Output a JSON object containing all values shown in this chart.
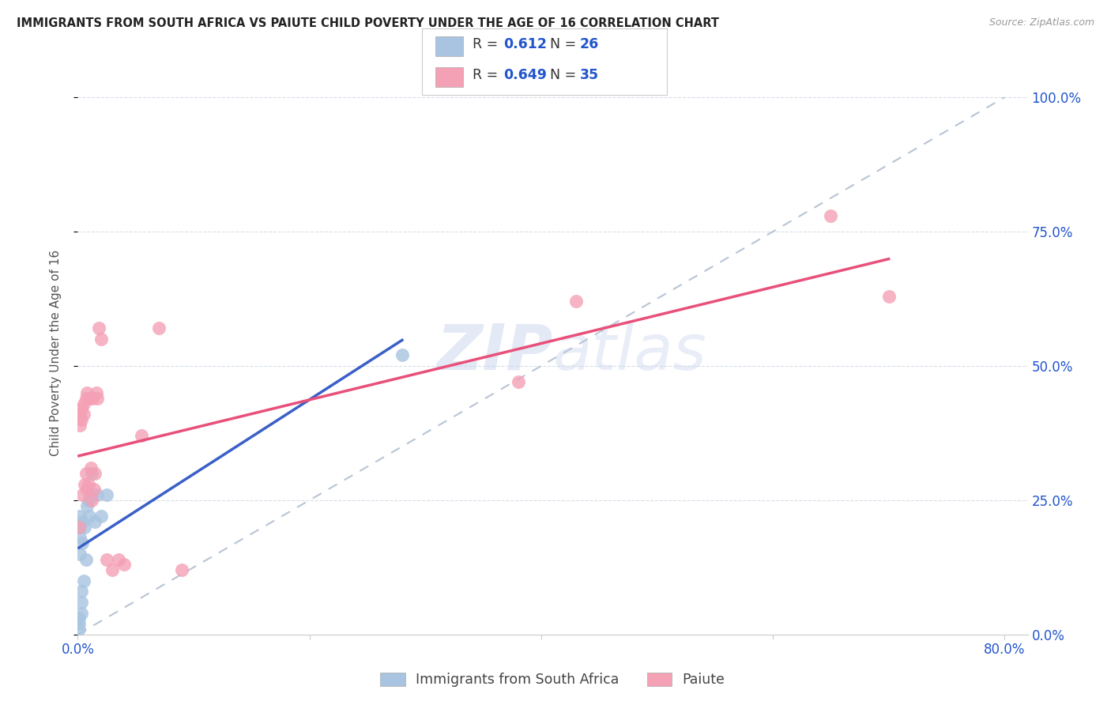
{
  "title": "IMMIGRANTS FROM SOUTH AFRICA VS PAIUTE CHILD POVERTY UNDER THE AGE OF 16 CORRELATION CHART",
  "source": "Source: ZipAtlas.com",
  "ylabel": "Child Poverty Under the Age of 16",
  "xlim": [
    0.0,
    0.82
  ],
  "ylim": [
    0.0,
    1.05
  ],
  "x_ticks": [
    0.0,
    0.2,
    0.4,
    0.6,
    0.8
  ],
  "x_tick_labels": [
    "0.0%",
    "",
    "",
    "",
    "80.0%"
  ],
  "y_ticks": [
    0.0,
    0.25,
    0.5,
    0.75,
    1.0
  ],
  "y_tick_labels": [
    "0.0%",
    "25.0%",
    "50.0%",
    "75.0%",
    "100.0%"
  ],
  "blue_R": "0.612",
  "blue_N": "26",
  "pink_R": "0.649",
  "pink_N": "35",
  "blue_color": "#a8c4e0",
  "pink_color": "#f4a0b5",
  "blue_line_color": "#3a5fc8",
  "pink_line_color": "#e8507a",
  "dashed_line_color": "#b8c4d4",
  "legend_text_color": "#2255cc",
  "watermark_color": "#ccd8ee",
  "blue_legend": "Immigrants from South Africa",
  "pink_legend": "Paiute",
  "blue_x": [
    0.001,
    0.001,
    0.001,
    0.002,
    0.002,
    0.002,
    0.002,
    0.003,
    0.003,
    0.003,
    0.004,
    0.004,
    0.005,
    0.006,
    0.007,
    0.008,
    0.009,
    0.01,
    0.011,
    0.012,
    0.013,
    0.015,
    0.017,
    0.02,
    0.025,
    0.28
  ],
  "blue_y": [
    0.01,
    0.02,
    0.03,
    0.15,
    0.18,
    0.2,
    0.22,
    0.04,
    0.06,
    0.08,
    0.17,
    0.21,
    0.1,
    0.2,
    0.14,
    0.24,
    0.25,
    0.22,
    0.26,
    0.3,
    0.26,
    0.21,
    0.26,
    0.22,
    0.26,
    0.52
  ],
  "pink_x": [
    0.001,
    0.002,
    0.002,
    0.003,
    0.003,
    0.004,
    0.005,
    0.005,
    0.006,
    0.007,
    0.007,
    0.008,
    0.008,
    0.009,
    0.01,
    0.011,
    0.012,
    0.013,
    0.014,
    0.015,
    0.016,
    0.017,
    0.018,
    0.02,
    0.025,
    0.03,
    0.035,
    0.04,
    0.055,
    0.07,
    0.09,
    0.38,
    0.43,
    0.65,
    0.7
  ],
  "pink_y": [
    0.2,
    0.39,
    0.41,
    0.4,
    0.42,
    0.26,
    0.41,
    0.43,
    0.28,
    0.44,
    0.3,
    0.27,
    0.45,
    0.28,
    0.44,
    0.31,
    0.25,
    0.44,
    0.27,
    0.3,
    0.45,
    0.44,
    0.57,
    0.55,
    0.14,
    0.12,
    0.14,
    0.13,
    0.37,
    0.57,
    0.12,
    0.47,
    0.62,
    0.78,
    0.63
  ]
}
